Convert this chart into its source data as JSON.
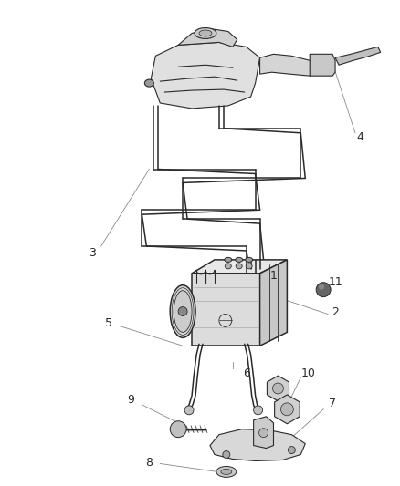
{
  "background_color": "#ffffff",
  "line_color": "#2a2a2a",
  "label_color": "#2a2a2a",
  "label_fontsize": 9,
  "fig_width": 4.38,
  "fig_height": 5.33,
  "dpi": 100
}
